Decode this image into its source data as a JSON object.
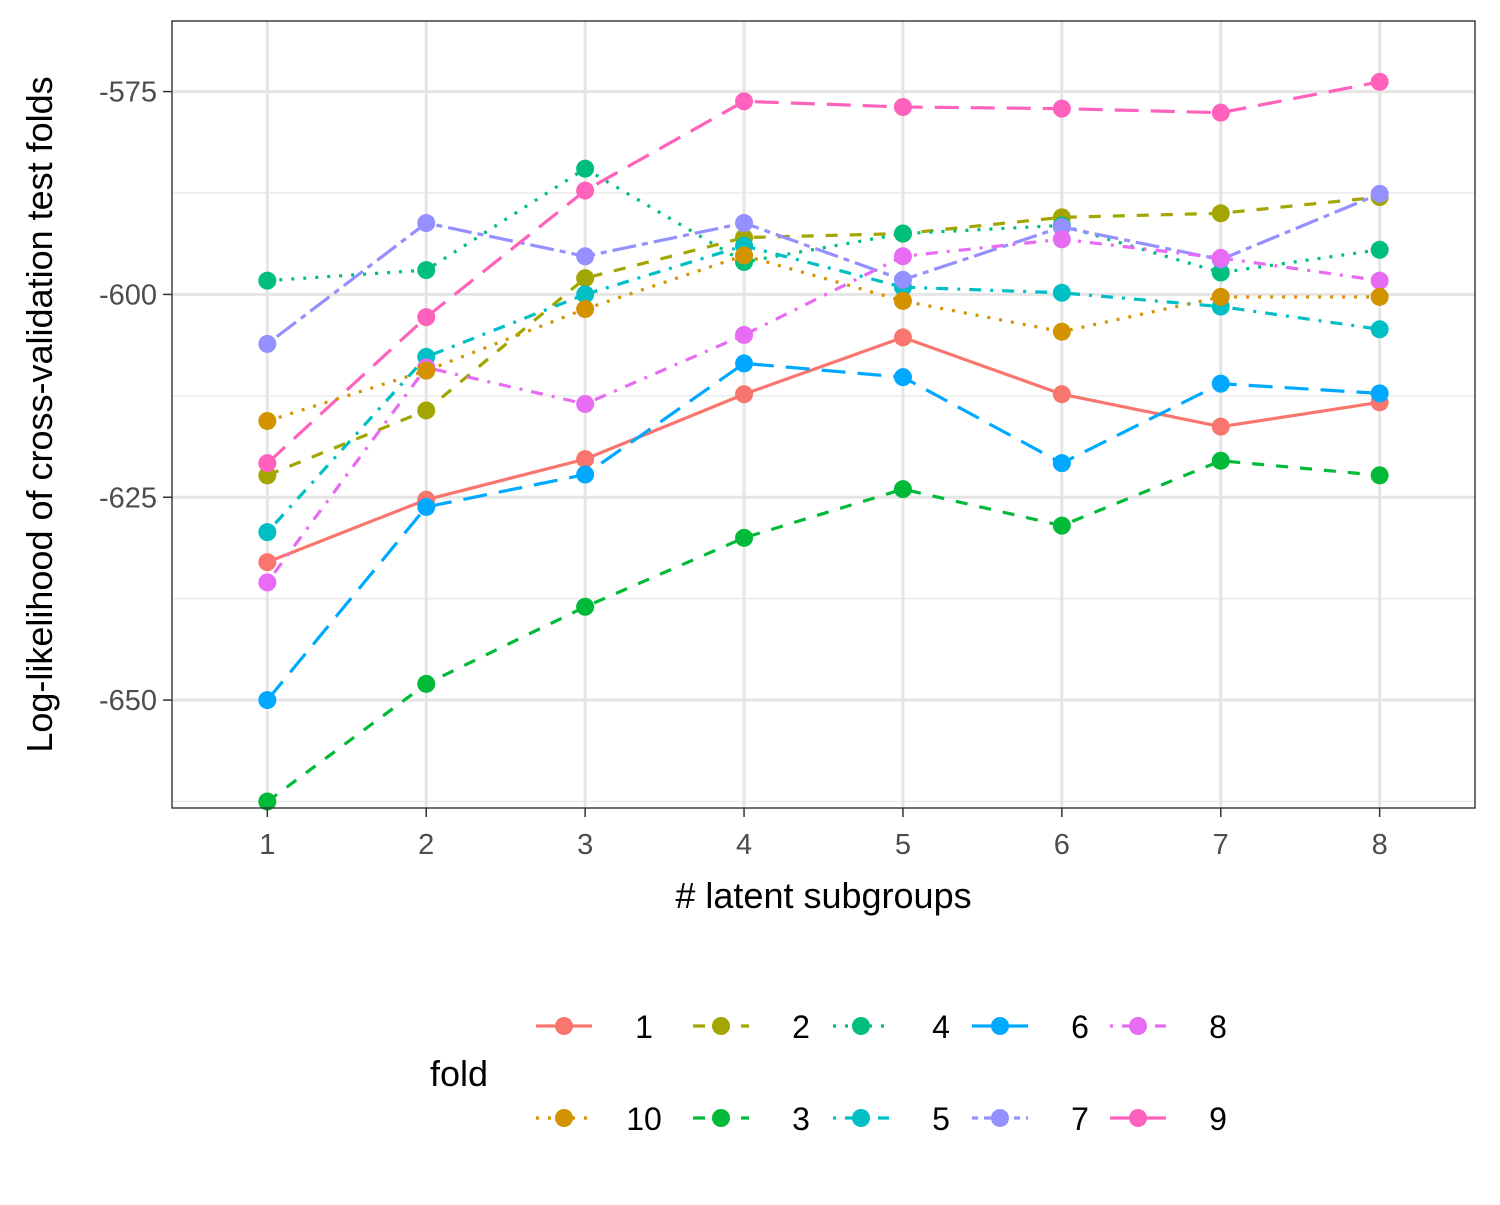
{
  "chart_data": {
    "type": "line",
    "title": "",
    "xlabel": "# latent subgroups",
    "ylabel": "Log-likelihood of cross-validation test folds",
    "x": [
      1,
      2,
      3,
      4,
      5,
      6,
      7,
      8
    ],
    "xlim": [
      0.4,
      8.6
    ],
    "ylim": [
      -663.3,
      -566.3
    ],
    "xticks": [
      1,
      2,
      3,
      4,
      5,
      6,
      7,
      8
    ],
    "yticks": [
      -575,
      -600,
      -625,
      -650
    ],
    "ytick_labels": [
      "-575",
      "-600",
      "-625",
      "-650"
    ],
    "y_minor_grid": [
      -587.5,
      -612.5,
      -637.5,
      -662.5
    ],
    "grid": true,
    "legend": {
      "title": "fold",
      "placement": "bottom",
      "rows": [
        [
          "1",
          "2",
          "4",
          "6",
          "8"
        ],
        [
          "10",
          "3",
          "5",
          "7",
          "9"
        ]
      ]
    },
    "series": [
      {
        "name": "1",
        "color": "#F8766D",
        "dash": "solid",
        "values": [
          -633,
          -625.3,
          -620.3,
          -612.3,
          -605.3,
          -612.3,
          -616.3,
          -613.3
        ]
      },
      {
        "name": "2",
        "color": "#A3A500",
        "dash": "dashed",
        "values": [
          -622.3,
          -614.3,
          -598,
          -593,
          -592.5,
          -590.5,
          -590,
          -588
        ]
      },
      {
        "name": "3",
        "color": "#00BA38",
        "dash": "dashed",
        "values": [
          -662.5,
          -648,
          -638.5,
          -630,
          -624,
          -628.5,
          -620.5,
          -622.3
        ]
      },
      {
        "name": "4",
        "color": "#00BF7D",
        "dash": "dotted",
        "values": [
          -598.3,
          -597,
          -584.5,
          -596,
          -592.5,
          -591.5,
          -597.3,
          -594.5
        ]
      },
      {
        "name": "5",
        "color": "#00BFC4",
        "dash": "dotdash",
        "values": [
          -629.3,
          -607.7,
          -600,
          -594,
          -599.1,
          -599.8,
          -601.5,
          -604.3
        ]
      },
      {
        "name": "6",
        "color": "#00A9FF",
        "dash": "longdash",
        "values": [
          -650,
          -626.2,
          -622.2,
          -608.5,
          -610.2,
          -620.8,
          -611,
          -612.2
        ]
      },
      {
        "name": "7",
        "color": "#9590FF",
        "dash": "twodash",
        "values": [
          -606.1,
          -591.2,
          -595.3,
          -591.2,
          -598.2,
          -591.7,
          -595.7,
          -587.6
        ]
      },
      {
        "name": "8",
        "color": "#E76BF3",
        "dash": "dotdash",
        "values": [
          -635.5,
          -609,
          -613.5,
          -605,
          -595.3,
          -593.2,
          -595.5,
          -598.3
        ]
      },
      {
        "name": "9",
        "color": "#FF62BC",
        "dash": "longdash",
        "values": [
          -620.8,
          -602.8,
          -587.2,
          -576.2,
          -576.9,
          -577.1,
          -577.6,
          -573.8
        ]
      },
      {
        "name": "10",
        "color": "#D39200",
        "dash": "dotted",
        "values": [
          -615.6,
          -609.4,
          -601.8,
          -595.2,
          -600.8,
          -604.6,
          -600.3,
          -600.3
        ]
      }
    ]
  }
}
